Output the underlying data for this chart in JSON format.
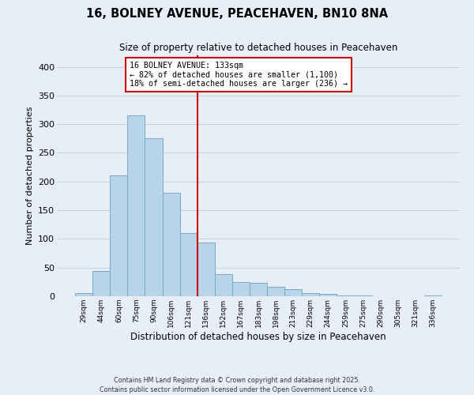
{
  "title": "16, BOLNEY AVENUE, PEACEHAVEN, BN10 8NA",
  "subtitle": "Size of property relative to detached houses in Peacehaven",
  "xlabel": "Distribution of detached houses by size in Peacehaven",
  "ylabel": "Number of detached properties",
  "bar_labels": [
    "29sqm",
    "44sqm",
    "60sqm",
    "75sqm",
    "90sqm",
    "106sqm",
    "121sqm",
    "136sqm",
    "152sqm",
    "167sqm",
    "183sqm",
    "198sqm",
    "213sqm",
    "229sqm",
    "244sqm",
    "259sqm",
    "275sqm",
    "290sqm",
    "305sqm",
    "321sqm",
    "336sqm"
  ],
  "bar_heights": [
    5,
    44,
    211,
    315,
    275,
    180,
    110,
    93,
    38,
    25,
    24,
    16,
    13,
    5,
    4,
    2,
    1,
    0,
    0,
    0,
    2
  ],
  "bar_color": "#b8d4e8",
  "bar_edge_color": "#7aaac8",
  "vline_color": "#cc0000",
  "annotation_title": "16 BOLNEY AVENUE: 133sqm",
  "annotation_line1": "← 82% of detached houses are smaller (1,100)",
  "annotation_line2": "18% of semi-detached houses are larger (236) →",
  "annotation_box_facecolor": "#ffffff",
  "annotation_box_edgecolor": "#cc0000",
  "ylim": [
    0,
    420
  ],
  "yticks": [
    0,
    50,
    100,
    150,
    200,
    250,
    300,
    350,
    400
  ],
  "footer1": "Contains HM Land Registry data © Crown copyright and database right 2025.",
  "footer2": "Contains public sector information licensed under the Open Government Licence v3.0.",
  "background_color": "#e8eef8",
  "grid_color": "#c8d0e0"
}
